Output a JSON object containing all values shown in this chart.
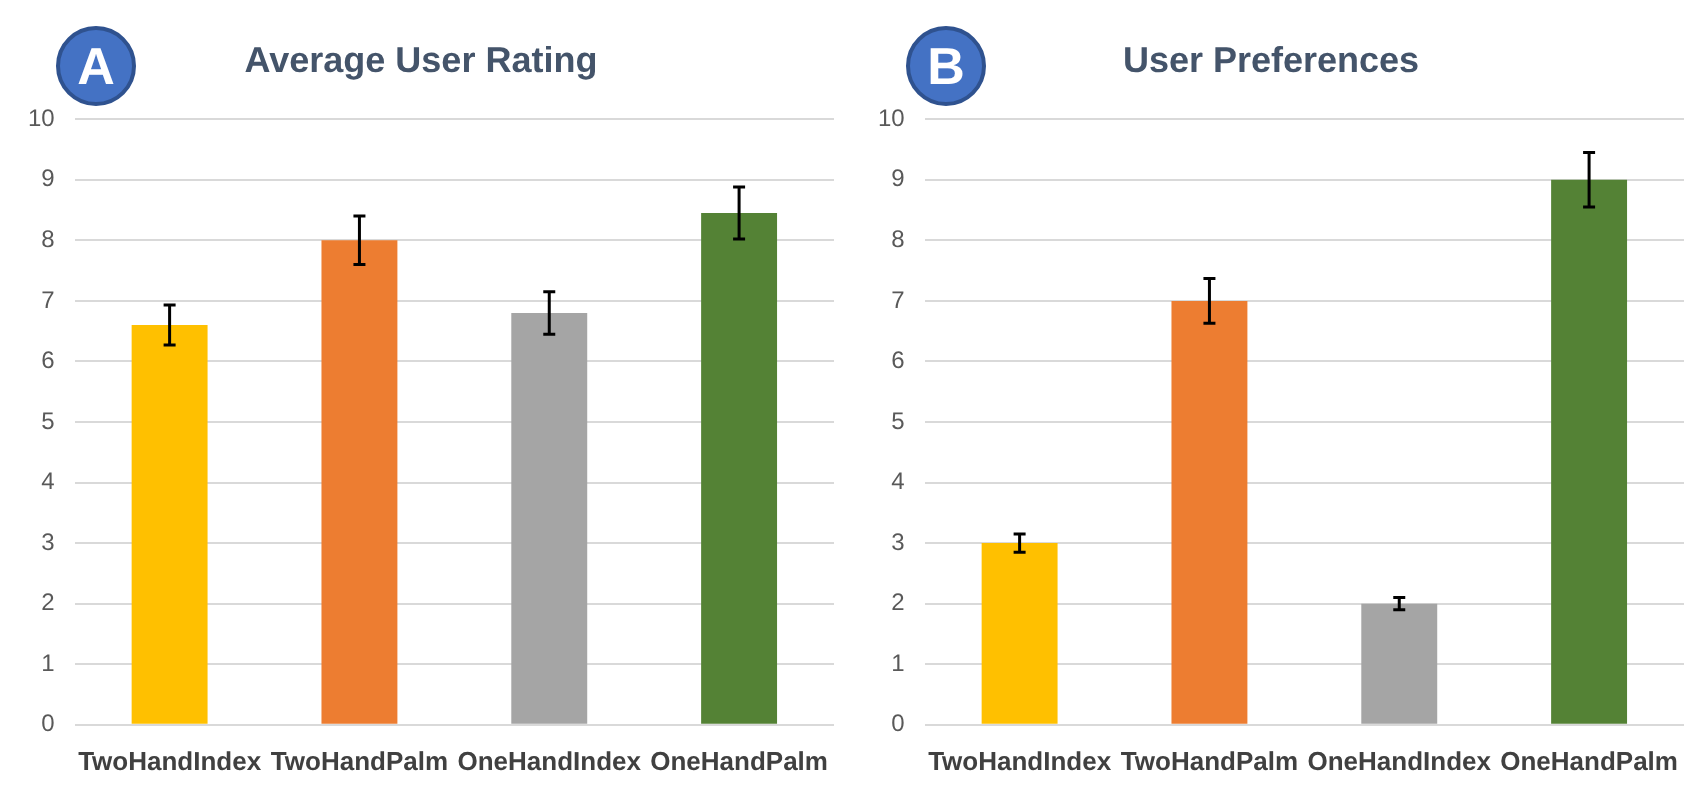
{
  "chart_data": [
    {
      "type": "bar",
      "title": "Average User Rating",
      "annotations": [
        "A"
      ],
      "categories": [
        "TwoHandIndex",
        "TwoHandPalm",
        "OneHandIndex",
        "OneHandPalm"
      ],
      "values": [
        6.6,
        8.0,
        6.8,
        8.45
      ],
      "errors": [
        0.33,
        0.4,
        0.35,
        0.43
      ],
      "colors": [
        "#ffc000",
        "#ed7d31",
        "#a5a5a5",
        "#548235"
      ],
      "ylim": [
        0,
        10
      ],
      "yticks": [
        0,
        1,
        2,
        3,
        4,
        5,
        6,
        7,
        8,
        9,
        10
      ],
      "grid": "y"
    },
    {
      "type": "bar",
      "title": "User Preferences",
      "annotations": [
        "B"
      ],
      "categories": [
        "TwoHandIndex",
        "TwoHandPalm",
        "OneHandIndex",
        "OneHandPalm"
      ],
      "values": [
        3.0,
        7.0,
        2.0,
        9.0
      ],
      "errors": [
        0.15,
        0.37,
        0.1,
        0.45
      ],
      "colors": [
        "#ffc000",
        "#ed7d31",
        "#a5a5a5",
        "#548235"
      ],
      "ylim": [
        0,
        10
      ],
      "yticks": [
        0,
        1,
        2,
        3,
        4,
        5,
        6,
        7,
        8,
        9,
        10
      ],
      "grid": "y"
    }
  ]
}
